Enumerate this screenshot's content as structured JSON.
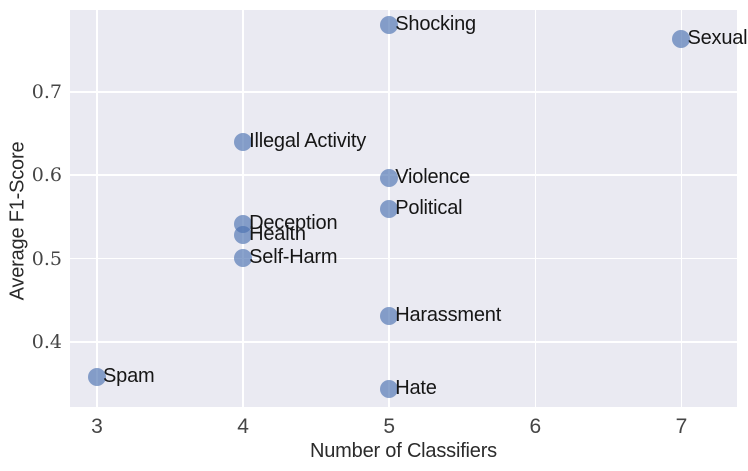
{
  "chart_data": {
    "type": "scatter",
    "title": "",
    "xlabel": "Number of Classifiers",
    "ylabel": "Average F1-Score",
    "xlim": [
      2.815,
      7.38
    ],
    "ylim": [
      0.322,
      0.798
    ],
    "xticks": [
      3,
      4,
      5,
      6,
      7
    ],
    "yticks": [
      0.4,
      0.5,
      0.6,
      0.7
    ],
    "grid": true,
    "legend": false,
    "colors": {
      "plot_background": "#eaeaf2",
      "gridline": "#ffffff",
      "point_fill": "#4c72b0",
      "point_alpha": 0.65,
      "tick_text": "#454545",
      "axis_label_text": "#2b2b2b",
      "point_label_text": "#161616"
    },
    "points": [
      {
        "label": "Shocking",
        "x": 5,
        "y": 0.78
      },
      {
        "label": "Sexual",
        "x": 7,
        "y": 0.763
      },
      {
        "label": "Illegal Activity",
        "x": 4,
        "y": 0.64
      },
      {
        "label": "Violence",
        "x": 5,
        "y": 0.597
      },
      {
        "label": "Political",
        "x": 5,
        "y": 0.56
      },
      {
        "label": "Deception",
        "x": 4,
        "y": 0.542
      },
      {
        "label": "Health",
        "x": 4,
        "y": 0.528
      },
      {
        "label": "Self-Harm",
        "x": 4,
        "y": 0.501
      },
      {
        "label": "Harassment",
        "x": 5,
        "y": 0.431
      },
      {
        "label": "Spam",
        "x": 3,
        "y": 0.358
      },
      {
        "label": "Hate",
        "x": 5,
        "y": 0.344
      }
    ]
  }
}
